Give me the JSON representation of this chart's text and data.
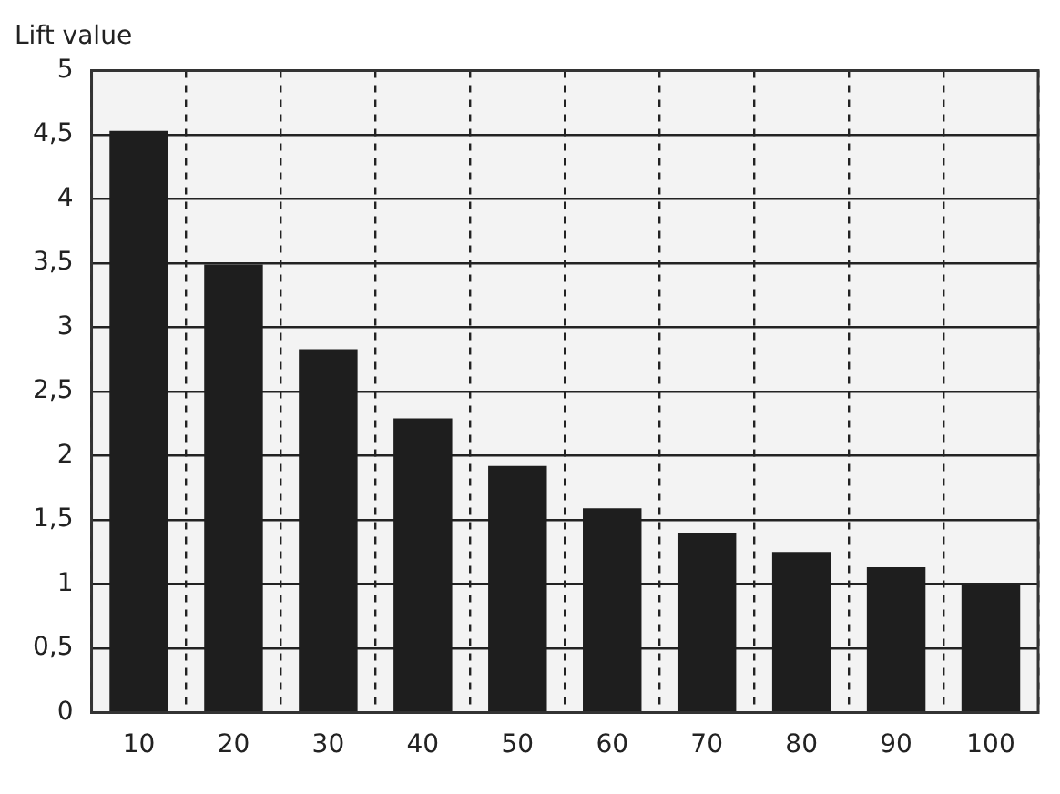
{
  "chart_data": {
    "type": "bar",
    "ylabel": "Lift value",
    "categories": [
      "10",
      "20",
      "30",
      "40",
      "50",
      "60",
      "70",
      "80",
      "90",
      "100"
    ],
    "values": [
      4.53,
      3.49,
      2.83,
      2.29,
      1.92,
      1.59,
      1.4,
      1.25,
      1.13,
      1.0
    ],
    "color": "#1e1e1e",
    "ylim": [
      0,
      5
    ],
    "yticks": [
      0,
      {
        "value": 0.5,
        "label": "0,5"
      },
      1,
      {
        "value": 1.5,
        "label": "1,5"
      },
      2,
      {
        "value": 2.5,
        "label": "2,5"
      },
      3,
      {
        "value": 3.5,
        "label": "3,5"
      },
      4,
      {
        "value": 4.5,
        "label": "4,5"
      },
      5
    ],
    "grid": true
  }
}
